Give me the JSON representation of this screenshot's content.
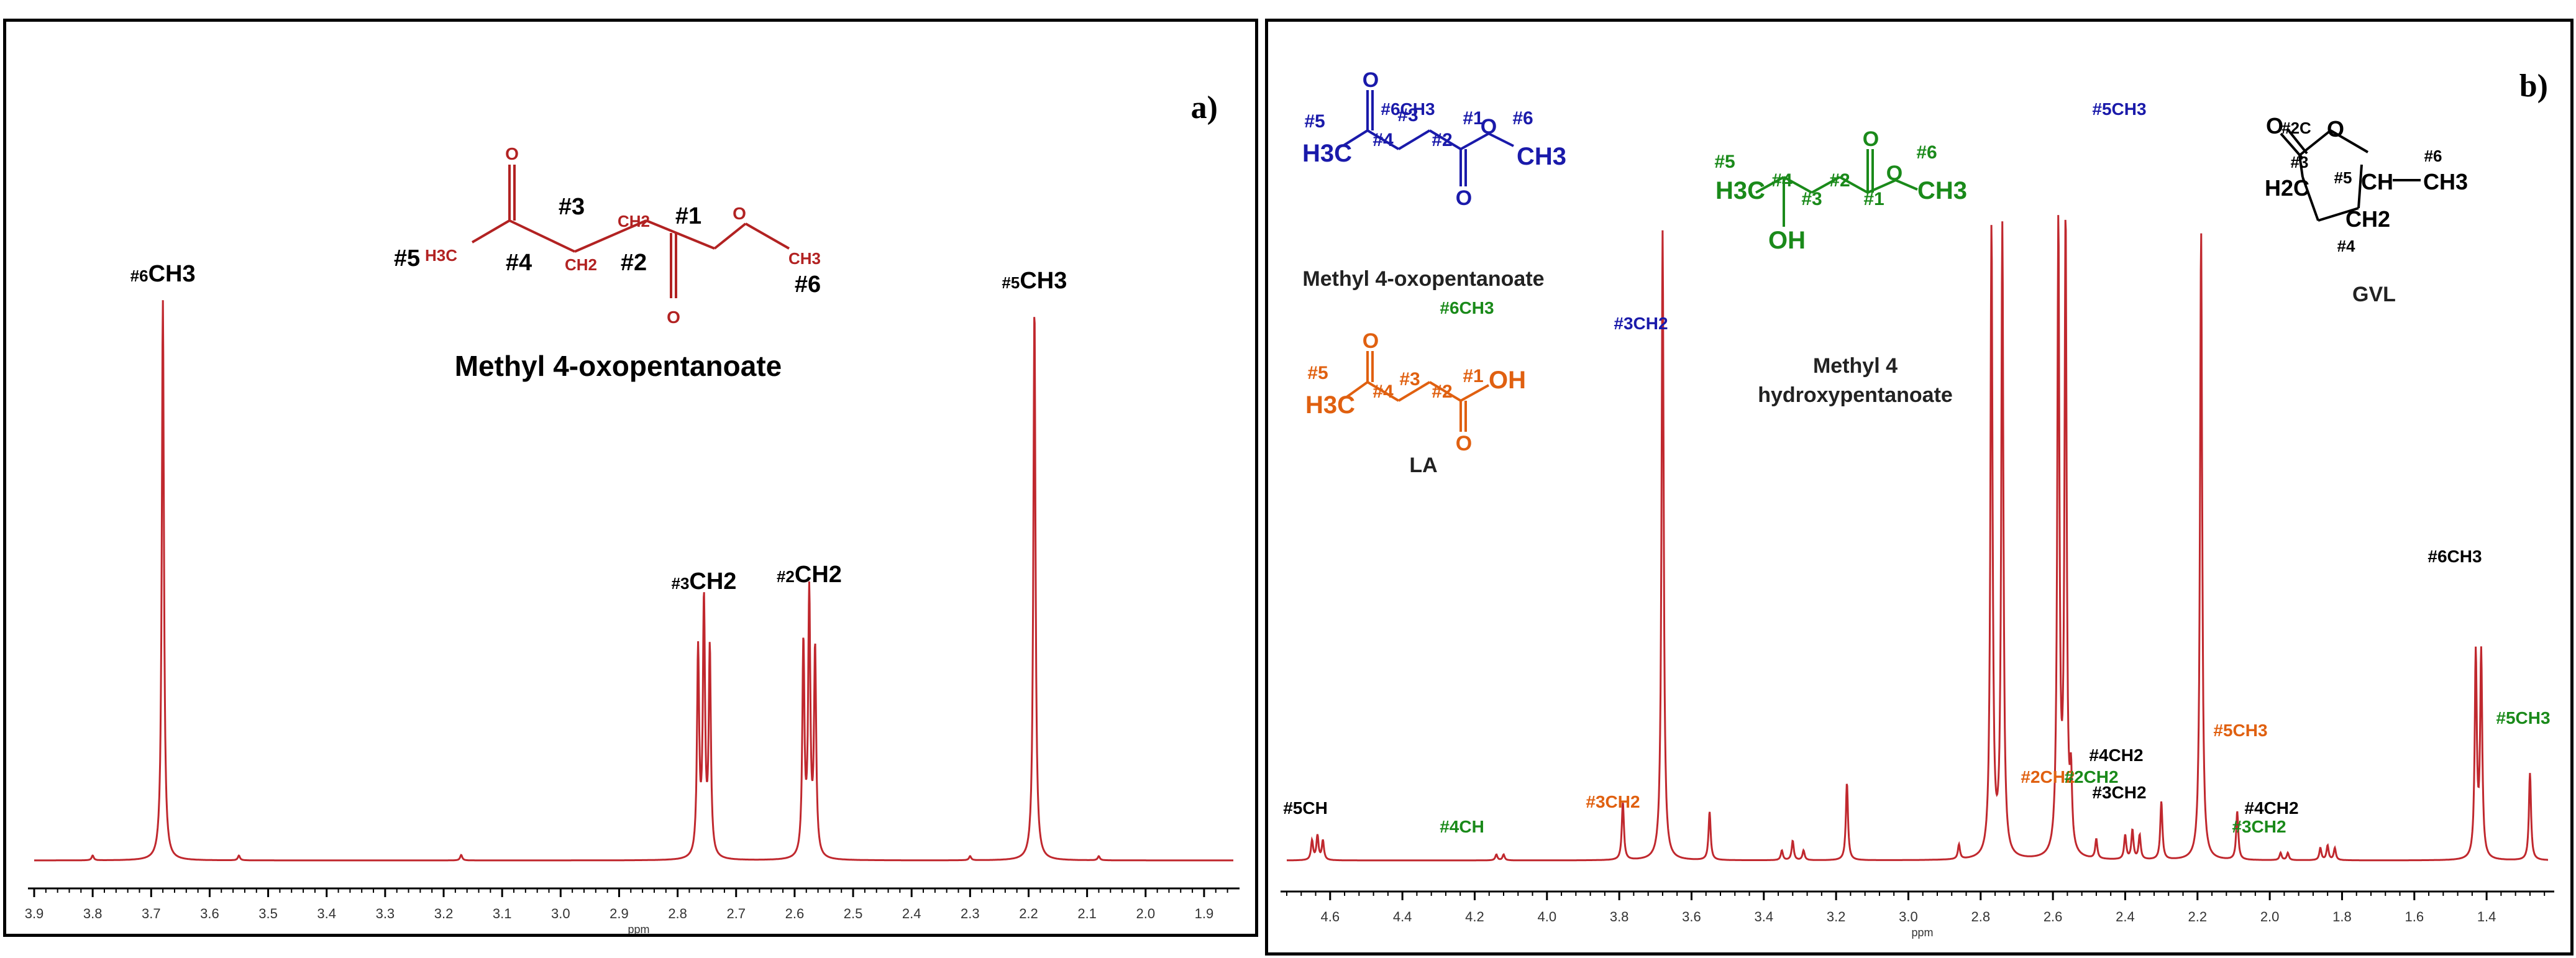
{
  "chart_data": [
    {
      "type": "line",
      "panel_label": "a)",
      "xlabel": "ppm",
      "x_direction": "reversed",
      "xlim": [
        3.9,
        1.85
      ],
      "ticks": [
        "3.9",
        "3.8",
        "3.7",
        "3.6",
        "3.5",
        "3.4",
        "3.3",
        "3.2",
        "3.1",
        "3.0",
        "2.9",
        "2.8",
        "2.7",
        "2.6",
        "2.5",
        "2.4",
        "2.3",
        "2.2",
        "2.1",
        "2.0",
        "1.9"
      ],
      "compound_name": "Methyl 4-oxopentanoate",
      "structure_labels": [
        "#1",
        "#2",
        "#3",
        "#4",
        "#5",
        "#6",
        "CH2",
        "CH2",
        "H3C",
        "CH3",
        "O",
        "O",
        "O"
      ],
      "peaks": [
        {
          "ppm": 3.68,
          "intensity": 0.82,
          "label_prefix": "#6",
          "label_main": "CH3"
        },
        {
          "ppm": 2.765,
          "intensity": 0.3
        },
        {
          "ppm": 2.755,
          "intensity": 0.37,
          "label_prefix": "#3",
          "label_main": "CH2"
        },
        {
          "ppm": 2.745,
          "intensity": 0.3
        },
        {
          "ppm": 2.585,
          "intensity": 0.31
        },
        {
          "ppm": 2.575,
          "intensity": 0.38,
          "label_prefix": "#2",
          "label_main": "CH2"
        },
        {
          "ppm": 2.565,
          "intensity": 0.3
        },
        {
          "ppm": 2.19,
          "intensity": 0.81,
          "label_prefix": "#5",
          "label_main": "CH3"
        },
        {
          "ppm": 3.8,
          "intensity": 0.007
        },
        {
          "ppm": 3.55,
          "intensity": 0.007
        },
        {
          "ppm": 3.17,
          "intensity": 0.008
        },
        {
          "ppm": 2.3,
          "intensity": 0.006
        },
        {
          "ppm": 2.08,
          "intensity": 0.006
        }
      ]
    },
    {
      "type": "line",
      "panel_label": "b)",
      "xlabel": "ppm",
      "x_direction": "reversed",
      "xlim": [
        4.72,
        1.23
      ],
      "ticks": [
        "4.6",
        "4.4",
        "4.2",
        "4.0",
        "3.8",
        "3.6",
        "3.4",
        "3.2",
        "3.0",
        "2.8",
        "2.6",
        "2.4",
        "2.2",
        "2.0",
        "1.8",
        "1.6",
        "1.4"
      ],
      "peaks": [
        {
          "ppm": 4.65,
          "intensity": 0.04
        },
        {
          "ppm": 4.635,
          "intensity": 0.05
        },
        {
          "ppm": 4.62,
          "intensity": 0.04
        },
        {
          "ppm": 4.14,
          "intensity": 0.012
        },
        {
          "ppm": 4.12,
          "intensity": 0.012
        },
        {
          "ppm": 3.79,
          "intensity": 0.12
        },
        {
          "ppm": 3.68,
          "intensity": 1.3
        },
        {
          "ppm": 3.55,
          "intensity": 0.1
        },
        {
          "ppm": 3.35,
          "intensity": 0.02
        },
        {
          "ppm": 3.32,
          "intensity": 0.04
        },
        {
          "ppm": 3.29,
          "intensity": 0.02
        },
        {
          "ppm": 3.17,
          "intensity": 0.16
        },
        {
          "ppm": 2.86,
          "intensity": 0.03
        },
        {
          "ppm": 2.77,
          "intensity": 1.3
        },
        {
          "ppm": 2.74,
          "intensity": 1.3
        },
        {
          "ppm": 2.585,
          "intensity": 1.3
        },
        {
          "ppm": 2.565,
          "intensity": 1.3
        },
        {
          "ppm": 2.55,
          "intensity": 0.14
        },
        {
          "ppm": 2.48,
          "intensity": 0.04
        },
        {
          "ppm": 2.4,
          "intensity": 0.05
        },
        {
          "ppm": 2.38,
          "intensity": 0.06
        },
        {
          "ppm": 2.36,
          "intensity": 0.05
        },
        {
          "ppm": 2.3,
          "intensity": 0.12
        },
        {
          "ppm": 2.19,
          "intensity": 1.3
        },
        {
          "ppm": 2.09,
          "intensity": 0.1
        },
        {
          "ppm": 1.97,
          "intensity": 0.015
        },
        {
          "ppm": 1.95,
          "intensity": 0.015
        },
        {
          "ppm": 1.86,
          "intensity": 0.025
        },
        {
          "ppm": 1.84,
          "intensity": 0.03
        },
        {
          "ppm": 1.82,
          "intensity": 0.025
        },
        {
          "ppm": 1.43,
          "intensity": 0.42
        },
        {
          "ppm": 1.415,
          "intensity": 0.42
        },
        {
          "ppm": 1.28,
          "intensity": 0.18
        }
      ],
      "peak_labels": [
        {
          "text": "#5CH",
          "color": "#000000",
          "ppm": 4.64
        },
        {
          "text": "#4CH",
          "color": "#1a8a1a",
          "ppm": 4.13
        },
        {
          "text": "#6CH3",
          "color": "#1a1aaa",
          "ppm": 3.68
        },
        {
          "text": "#6CH3",
          "color": "#1a8a1a",
          "ppm": 3.64
        },
        {
          "text": "#3CH2",
          "color": "#e06010",
          "ppm": 2.96
        },
        {
          "text": "#3CH2",
          "color": "#1a1aaa",
          "ppm": 2.9
        },
        {
          "text": "#2CH2",
          "color": "#e06010",
          "ppm": 2.62
        },
        {
          "text": "#2CH2",
          "color": "#1a8a1a",
          "ppm": 2.53
        },
        {
          "text": "#5CH3",
          "color": "#1a1aaa",
          "ppm": 2.4
        },
        {
          "text": "#4CH2",
          "color": "#000000",
          "ppm": 2.45
        },
        {
          "text": "#3CH2",
          "color": "#000000",
          "ppm": 2.45
        },
        {
          "text": "#5CH3",
          "color": "#e06010",
          "ppm": 2.1
        },
        {
          "text": "#3CH2",
          "color": "#1a8a1a",
          "ppm": 1.95
        },
        {
          "text": "#4CH2",
          "color": "#000000",
          "ppm": 1.82
        },
        {
          "text": "#6CH3",
          "color": "#000000",
          "ppm": 1.42
        },
        {
          "text": "#5CH3",
          "color": "#1a8a1a",
          "ppm": 1.28
        }
      ],
      "structures": [
        {
          "name": "Methyl 4-oxopentanoate",
          "color": "#1a1aaa",
          "labels": [
            "#1",
            "#2",
            "#3",
            "#4",
            "#5",
            "#6",
            "H3C",
            "CH3",
            "O",
            "O",
            "O"
          ]
        },
        {
          "name": "LA",
          "color": "#e06010",
          "labels": [
            "#1",
            "#2",
            "#3",
            "#4",
            "#5",
            "H3C",
            "OH",
            "O",
            "O"
          ]
        },
        {
          "name": "Methyl 4",
          "name2": "hydroxypentanoate",
          "color": "#1a8a1a",
          "labels": [
            "#1",
            "#2",
            "#3",
            "#4",
            "#5",
            "#6",
            "H3C",
            "CH3",
            "OH",
            "O",
            "O"
          ]
        },
        {
          "name": "GVL",
          "color": "#000000",
          "labels": [
            "#2C",
            "#3",
            "#4",
            "#5",
            "#6",
            "H2C",
            "CH2",
            "CH",
            "CH3",
            "O",
            "O"
          ]
        }
      ]
    }
  ],
  "colors": {
    "spectrum": "#c0282e",
    "blue": "#1a1aaa",
    "green": "#1a8a1a",
    "orange": "#e06010",
    "black": "#000000"
  }
}
